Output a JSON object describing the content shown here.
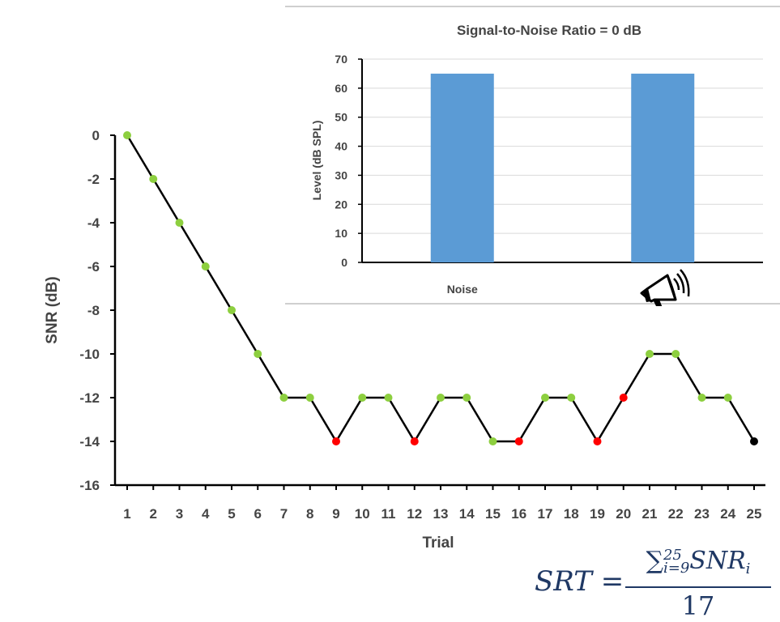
{
  "chart_data": [
    {
      "type": "line",
      "xlabel": "Trial",
      "ylabel": "SNR (dB)",
      "x": [
        1,
        2,
        3,
        4,
        5,
        6,
        7,
        8,
        9,
        10,
        11,
        12,
        13,
        14,
        15,
        16,
        17,
        18,
        19,
        20,
        21,
        22,
        23,
        24,
        25
      ],
      "y": [
        0,
        -2,
        -4,
        -6,
        -8,
        -10,
        -12,
        -12,
        -14,
        -12,
        -12,
        -14,
        -12,
        -12,
        -14,
        -14,
        -12,
        -12,
        -14,
        -12,
        -10,
        -10,
        -12,
        -12,
        -14
      ],
      "point_colors": [
        "green",
        "green",
        "green",
        "green",
        "green",
        "green",
        "green",
        "green",
        "red",
        "green",
        "green",
        "red",
        "green",
        "green",
        "green",
        "red",
        "green",
        "green",
        "red",
        "red",
        "green",
        "green",
        "green",
        "green",
        "black"
      ],
      "yticks": [
        "0",
        "-2",
        "-4",
        "-6",
        "-8",
        "-10",
        "-12",
        "-14",
        "-16"
      ],
      "xticks": [
        "1",
        "2",
        "3",
        "4",
        "5",
        "6",
        "7",
        "8",
        "9",
        "10",
        "11",
        "12",
        "13",
        "14",
        "15",
        "16",
        "17",
        "18",
        "19",
        "20",
        "21",
        "22",
        "23",
        "24",
        "25"
      ],
      "ylim": [
        -16,
        0
      ],
      "grid": false,
      "colors": {
        "green": "#8dcf3f",
        "red": "#ff0000",
        "black": "#000000",
        "line": "#000000"
      }
    },
    {
      "type": "bar",
      "title": "Signal-to-Noise Ratio = 0 dB",
      "ylabel": "Level (dB SPL)",
      "categories": [
        "Noise",
        ""
      ],
      "values": [
        65,
        65
      ],
      "ylim": [
        0,
        70
      ],
      "yticks": [
        "0",
        "10",
        "20",
        "30",
        "40",
        "50",
        "60",
        "70"
      ],
      "grid": true,
      "bar_color": "#5b9bd5"
    }
  ],
  "icons": {
    "speaker": "megaphone-icon"
  },
  "formula": {
    "lhs": "SRT =",
    "sum": "∑",
    "sub": "i=9",
    "sup": "25",
    "term": "SNR",
    "term_sub": "i",
    "denominator": "17"
  }
}
